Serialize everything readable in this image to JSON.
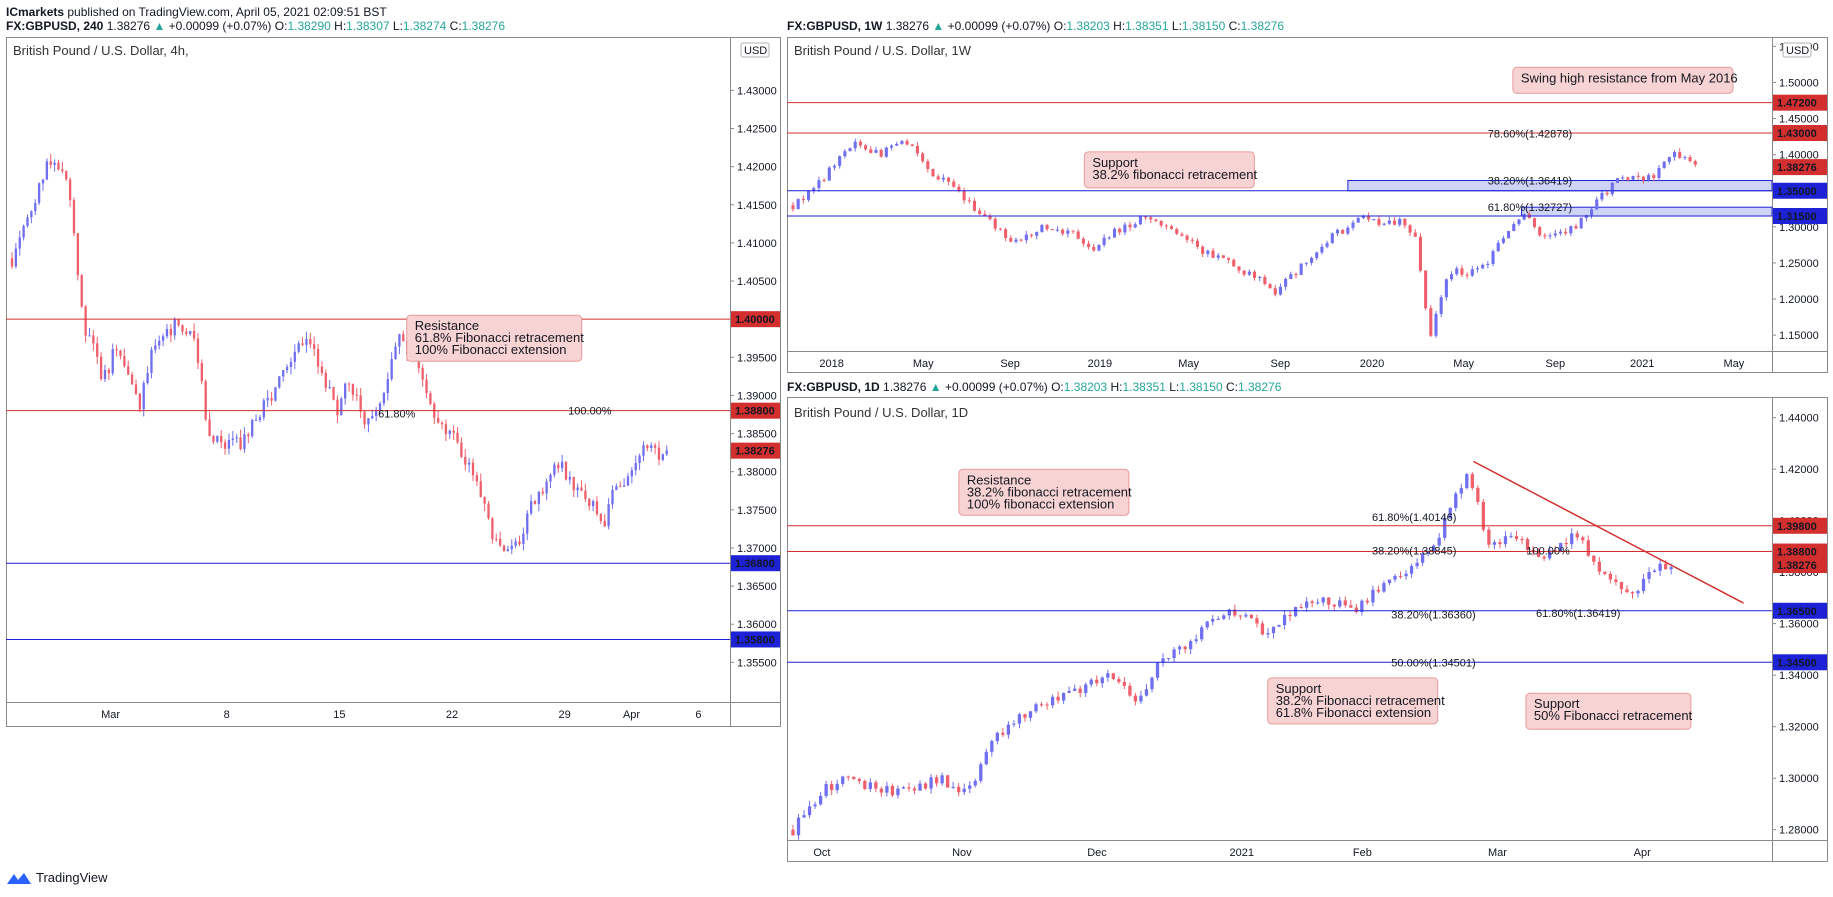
{
  "header": {
    "author": "ICmarkets",
    "published": "published on TradingView.com, April 05, 2021 02:09:51 BST"
  },
  "footer": {
    "brand": "TradingView"
  },
  "colors": {
    "up": "#6f6ff0",
    "down": "#ef5f6c",
    "resistance": "#d32f2f",
    "support": "#1e22d6",
    "annotation_fill": "#f8d3d3",
    "annotation_stroke": "#e79a9a",
    "label_red": "#d32f2f",
    "label_blue": "#1e22d6",
    "fib_text": "#d4a017",
    "fib_blue": "#2962ff",
    "positive": "#26a69a"
  },
  "chart_data": [
    {
      "id": "p1",
      "type": "candlestick",
      "header": {
        "symbol": "FX:GBPUSD, 240",
        "arrow": "▲",
        "change": "+0.00099 (+0.07%)",
        "o": "1.38290",
        "h": "1.38307",
        "l": "1.38274",
        "c": "1.38276",
        "price": "1.38276"
      },
      "title": "British Pound / U.S. Dollar, 4h,",
      "currency": "USD",
      "ylim": [
        1.3498,
        1.437
      ],
      "y_ticks": [
        "1.35500",
        "1.36000",
        "1.36500",
        "1.37000",
        "1.37500",
        "1.38000",
        "1.38500",
        "1.39000",
        "1.39500",
        "1.40000",
        "1.40500",
        "1.41000",
        "1.41500",
        "1.42000",
        "1.42500",
        "1.43000"
      ],
      "x_labels": [
        {
          "t": "Mar",
          "i": 0.14
        },
        {
          "t": "8",
          "i": 0.305
        },
        {
          "t": "15",
          "i": 0.465
        },
        {
          "t": "22",
          "i": 0.625
        },
        {
          "t": "29",
          "i": 0.785
        },
        {
          "t": "Apr",
          "i": 0.88
        },
        {
          "t": "6",
          "i": 0.975
        }
      ],
      "price_path": [
        [
          0,
          1.408
        ],
        [
          0.03,
          1.415
        ],
        [
          0.05,
          1.421
        ],
        [
          0.08,
          1.419
        ],
        [
          0.1,
          1.4
        ],
        [
          0.13,
          1.392
        ],
        [
          0.15,
          1.397
        ],
        [
          0.18,
          1.388
        ],
        [
          0.2,
          1.396
        ],
        [
          0.23,
          1.399
        ],
        [
          0.26,
          1.397
        ],
        [
          0.28,
          1.385
        ],
        [
          0.3,
          1.383
        ],
        [
          0.33,
          1.384
        ],
        [
          0.36,
          1.389
        ],
        [
          0.39,
          1.393
        ],
        [
          0.42,
          1.398
        ],
        [
          0.44,
          1.393
        ],
        [
          0.46,
          1.388
        ],
        [
          0.48,
          1.392
        ],
        [
          0.5,
          1.387
        ],
        [
          0.52,
          1.388
        ],
        [
          0.55,
          1.398
        ],
        [
          0.58,
          1.394
        ],
        [
          0.6,
          1.388
        ],
        [
          0.63,
          1.384
        ],
        [
          0.66,
          1.379
        ],
        [
          0.68,
          1.372
        ],
        [
          0.7,
          1.3695
        ],
        [
          0.72,
          1.37
        ],
        [
          0.74,
          1.376
        ],
        [
          0.76,
          1.379
        ],
        [
          0.78,
          1.381
        ],
        [
          0.8,
          1.378
        ],
        [
          0.82,
          1.376
        ],
        [
          0.84,
          1.373
        ],
        [
          0.86,
          1.379
        ],
        [
          0.88,
          1.379
        ],
        [
          0.9,
          1.384
        ],
        [
          0.92,
          1.3825
        ],
        [
          0.93,
          1.3828
        ]
      ],
      "levels": [
        {
          "price": 1.4,
          "label": "1.40000",
          "color": "red"
        },
        {
          "price": 1.388,
          "label": "1.38800",
          "color": "red"
        },
        {
          "price": 1.368,
          "label": "1.36800",
          "color": "blue"
        },
        {
          "price": 1.358,
          "label": "1.35800",
          "color": "blue"
        }
      ],
      "current_label": "1.38276",
      "fib_labels": [
        {
          "t": "61.80%",
          "x": 0.52,
          "p": 1.3876,
          "c": "gold"
        },
        {
          "t": "100.00%",
          "x": 0.79,
          "p": 1.388,
          "c": "blue"
        }
      ],
      "annotations": [
        {
          "lines": [
            "Resistance",
            "61.8% Fibonacci retracement",
            "100% Fibonacci extension"
          ],
          "x": 0.685,
          "p": 1.3975,
          "w": 175,
          "h": 46
        }
      ]
    },
    {
      "id": "p2",
      "type": "candlestick",
      "header": {
        "symbol": "FX:GBPUSD, 1W",
        "arrow": "▲",
        "change": "+0.00099 (+0.07%)",
        "o": "1.38203",
        "h": "1.38351",
        "l": "1.38150",
        "c": "1.38276",
        "price": "1.38276"
      },
      "title": "British Pound / U.S. Dollar, 1W",
      "currency": "USD",
      "ylim": [
        1.128,
        1.563
      ],
      "y_ticks": [
        "1.15000",
        "1.20000",
        "1.25000",
        "1.30000",
        "1.35000",
        "1.40000",
        "1.45000",
        "1.50000",
        "1.55000"
      ],
      "x_labels": [
        {
          "t": "2018",
          "i": 0.04
        },
        {
          "t": "May",
          "i": 0.135
        },
        {
          "t": "Sep",
          "i": 0.225
        },
        {
          "t": "2019",
          "i": 0.318
        },
        {
          "t": "May",
          "i": 0.41
        },
        {
          "t": "Sep",
          "i": 0.505
        },
        {
          "t": "2020",
          "i": 0.6
        },
        {
          "t": "May",
          "i": 0.695
        },
        {
          "t": "Sep",
          "i": 0.79
        },
        {
          "t": "2021",
          "i": 0.88
        },
        {
          "t": "May",
          "i": 0.975
        }
      ],
      "price_path": [
        [
          0,
          1.33
        ],
        [
          0.03,
          1.365
        ],
        [
          0.06,
          1.415
        ],
        [
          0.09,
          1.4
        ],
        [
          0.12,
          1.42
        ],
        [
          0.14,
          1.38
        ],
        [
          0.17,
          1.35
        ],
        [
          0.2,
          1.31
        ],
        [
          0.23,
          1.28
        ],
        [
          0.26,
          1.3
        ],
        [
          0.29,
          1.29
        ],
        [
          0.31,
          1.27
        ],
        [
          0.33,
          1.29
        ],
        [
          0.36,
          1.31
        ],
        [
          0.39,
          1.3
        ],
        [
          0.42,
          1.27
        ],
        [
          0.45,
          1.25
        ],
        [
          0.48,
          1.23
        ],
        [
          0.5,
          1.21
        ],
        [
          0.52,
          1.235
        ],
        [
          0.55,
          1.28
        ],
        [
          0.57,
          1.295
        ],
        [
          0.59,
          1.32
        ],
        [
          0.61,
          1.3
        ],
        [
          0.63,
          1.31
        ],
        [
          0.645,
          1.29
        ],
        [
          0.66,
          1.15
        ],
        [
          0.68,
          1.24
        ],
        [
          0.7,
          1.235
        ],
        [
          0.72,
          1.25
        ],
        [
          0.74,
          1.295
        ],
        [
          0.76,
          1.32
        ],
        [
          0.77,
          1.29
        ],
        [
          0.79,
          1.29
        ],
        [
          0.81,
          1.3
        ],
        [
          0.83,
          1.33
        ],
        [
          0.85,
          1.36
        ],
        [
          0.87,
          1.37
        ],
        [
          0.89,
          1.37
        ],
        [
          0.91,
          1.4
        ],
        [
          0.92,
          1.395
        ],
        [
          0.935,
          1.3828
        ]
      ],
      "levels": [
        {
          "price": 1.472,
          "label": "1.47200",
          "color": "red"
        },
        {
          "price": 1.43,
          "label": "1.43000",
          "color": "red"
        },
        {
          "price": 1.35,
          "label": "1.35000",
          "color": "blue"
        },
        {
          "price": 1.315,
          "label": "1.31500",
          "color": "blue"
        }
      ],
      "current_label": "1.38276",
      "zones": [
        {
          "x0": 0.575,
          "x1": 1.0,
          "p0": 1.35,
          "p1": 1.3642
        },
        {
          "x0": 0.755,
          "x1": 1.0,
          "p0": 1.315,
          "p1": 1.3272
        }
      ],
      "fib_labels": [
        {
          "t": "78.60%(1.42878)",
          "x": 0.72,
          "p": 1.429,
          "c": "blue"
        },
        {
          "t": "38.20%(1.36419)",
          "x": 0.72,
          "p": 1.3642,
          "c": "blue"
        },
        {
          "t": "61.80%(1.32727)",
          "x": 0.72,
          "p": 1.3272,
          "c": "gold"
        }
      ],
      "annotations": [
        {
          "lines": [
            "Swing high resistance from May 2016"
          ],
          "x": 0.86,
          "p": 1.503,
          "w": 220,
          "h": 26
        },
        {
          "lines": [
            "Support",
            "38.2% fibonacci retracement"
          ],
          "x": 0.39,
          "p": 1.379,
          "w": 170,
          "h": 36
        }
      ]
    },
    {
      "id": "p3",
      "type": "candlestick",
      "header": {
        "symbol": "FX:GBPUSD, 1D",
        "arrow": "▲",
        "change": "+0.00099 (+0.07%)",
        "o": "1.38203",
        "h": "1.38351",
        "l": "1.38150",
        "c": "1.38276",
        "price": "1.38276"
      },
      "title": "British Pound / U.S. Dollar, 1D",
      "currency": "",
      "ylim": [
        1.276,
        1.448
      ],
      "y_ticks": [
        "1.28000",
        "1.30000",
        "1.32000",
        "1.34000",
        "1.36000",
        "1.38000",
        "1.40000",
        "1.42000",
        "1.44000"
      ],
      "x_labels": [
        {
          "t": "Oct",
          "i": 0.03
        },
        {
          "t": "Nov",
          "i": 0.175
        },
        {
          "t": "Dec",
          "i": 0.315
        },
        {
          "t": "2021",
          "i": 0.465
        },
        {
          "t": "Feb",
          "i": 0.59
        },
        {
          "t": "Mar",
          "i": 0.73
        },
        {
          "t": "Apr",
          "i": 0.88
        }
      ],
      "price_path": [
        [
          0,
          1.28
        ],
        [
          0.03,
          1.295
        ],
        [
          0.06,
          1.3
        ],
        [
          0.09,
          1.295
        ],
        [
          0.12,
          1.295
        ],
        [
          0.15,
          1.3
        ],
        [
          0.18,
          1.295
        ],
        [
          0.21,
          1.315
        ],
        [
          0.24,
          1.325
        ],
        [
          0.27,
          1.33
        ],
        [
          0.3,
          1.335
        ],
        [
          0.33,
          1.34
        ],
        [
          0.36,
          1.33
        ],
        [
          0.38,
          1.345
        ],
        [
          0.4,
          1.35
        ],
        [
          0.43,
          1.36
        ],
        [
          0.46,
          1.365
        ],
        [
          0.49,
          1.355
        ],
        [
          0.52,
          1.365
        ],
        [
          0.55,
          1.37
        ],
        [
          0.58,
          1.365
        ],
        [
          0.61,
          1.375
        ],
        [
          0.63,
          1.38
        ],
        [
          0.65,
          1.385
        ],
        [
          0.67,
          1.395
        ],
        [
          0.7,
          1.42
        ],
        [
          0.71,
          1.405
        ],
        [
          0.72,
          1.39
        ],
        [
          0.75,
          1.395
        ],
        [
          0.77,
          1.385
        ],
        [
          0.79,
          1.39
        ],
        [
          0.81,
          1.395
        ],
        [
          0.83,
          1.385
        ],
        [
          0.85,
          1.375
        ],
        [
          0.87,
          1.37
        ],
        [
          0.89,
          1.38
        ],
        [
          0.91,
          1.3828
        ]
      ],
      "levels": [
        {
          "price": 1.398,
          "label": "1.39800",
          "color": "red"
        },
        {
          "price": 1.388,
          "label": "1.38800",
          "color": "red"
        },
        {
          "price": 1.365,
          "label": "1.36500",
          "color": "blue"
        },
        {
          "price": 1.345,
          "label": "1.34500",
          "color": "blue"
        }
      ],
      "current_label": "1.38276",
      "trendline": {
        "x0": 0.705,
        "p0": 1.423,
        "x1": 0.985,
        "p1": 1.368
      },
      "fib_labels": [
        {
          "t": "61.80%(1.40146)",
          "x": 0.6,
          "p": 1.4014,
          "c": "gold"
        },
        {
          "t": "38.20%(1.38845)",
          "x": 0.6,
          "p": 1.3884,
          "c": "blue"
        },
        {
          "t": "100.00%",
          "x": 0.76,
          "p": 1.3884,
          "c": "blue"
        },
        {
          "t": "38.20%(1.36360)",
          "x": 0.62,
          "p": 1.3636,
          "c": "blue"
        },
        {
          "t": "61.80%(1.36419)",
          "x": 0.77,
          "p": 1.3642,
          "c": "blue"
        },
        {
          "t": "50.00%(1.34501)",
          "x": 0.62,
          "p": 1.345,
          "c": "blue"
        }
      ],
      "annotations": [
        {
          "lines": [
            "Resistance",
            "38.2% fibonacci retracement",
            "100% fibonacci extension"
          ],
          "x": 0.26,
          "p": 1.411,
          "w": 170,
          "h": 46
        },
        {
          "lines": [
            "Support",
            "38.2% Fibonacci retracement",
            "61.8% Fibonacci extension"
          ],
          "x": 0.58,
          "p": 1.33,
          "w": 170,
          "h": 46
        },
        {
          "lines": [
            "Support",
            "50% Fibonacci retracement"
          ],
          "x": 0.845,
          "p": 1.326,
          "w": 165,
          "h": 36
        }
      ]
    }
  ]
}
